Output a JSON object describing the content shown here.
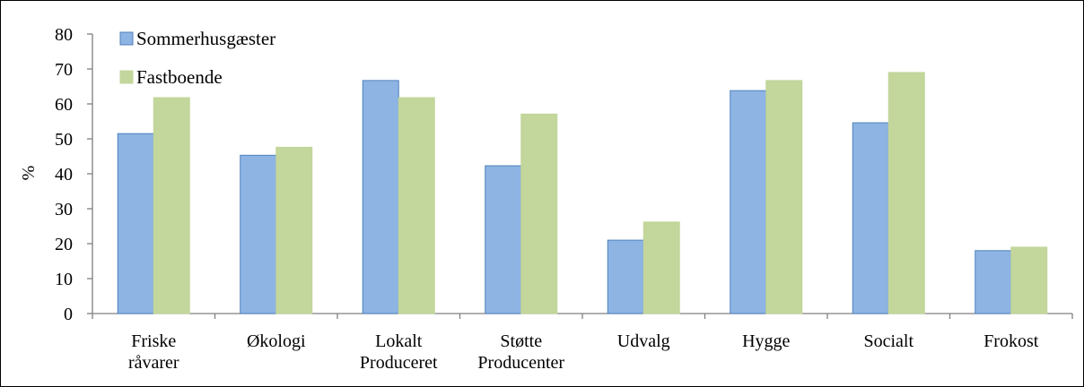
{
  "chart_data": {
    "type": "bar",
    "title": "",
    "xlabel": "",
    "ylabel": "%",
    "ylim": [
      0,
      80
    ],
    "yticks": [
      "0",
      "10",
      "20",
      "30",
      "40",
      "50",
      "60",
      "70",
      "80"
    ],
    "grid": false,
    "legend_position": "top-left",
    "categories": [
      [
        "Friske",
        "råvarer"
      ],
      [
        "Økologi"
      ],
      [
        "Lokalt",
        "Produceret"
      ],
      [
        "Støtte",
        "Producenter"
      ],
      [
        "Udvalg"
      ],
      [
        "Hygge"
      ],
      [
        "Socialt"
      ],
      [
        "Frokost"
      ]
    ],
    "series": [
      {
        "name": "Sommerhusgæster",
        "color": "#8eb4e3",
        "stroke": "#4f81bd",
        "values": [
          51.5,
          45.3,
          66.7,
          42.3,
          21.0,
          63.8,
          54.6,
          18.0
        ]
      },
      {
        "name": "Fastboende",
        "color": "#c3d69b",
        "stroke": "#c3d69b",
        "values": [
          61.8,
          47.6,
          61.8,
          57.1,
          26.2,
          66.7,
          69.0,
          19.0
        ]
      }
    ]
  }
}
